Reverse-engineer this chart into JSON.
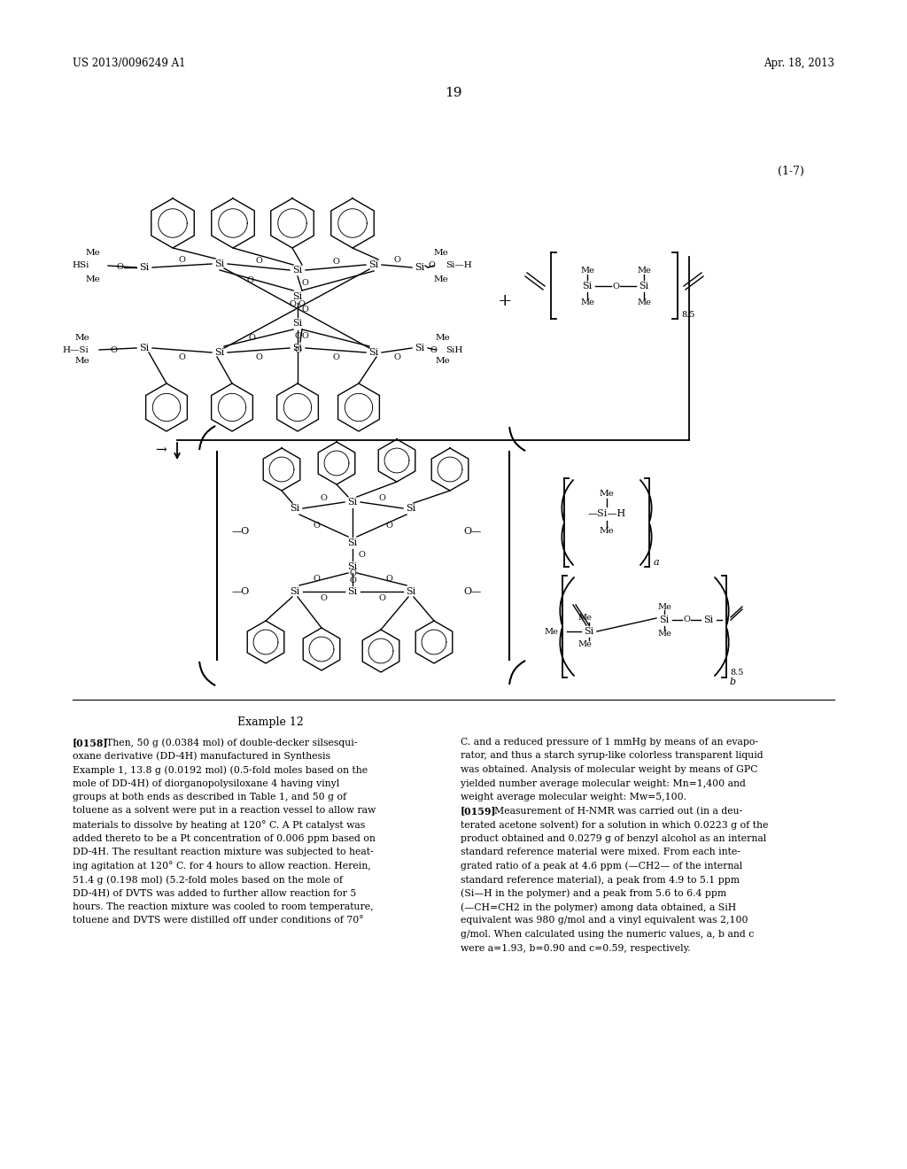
{
  "background_color": "#ffffff",
  "page_header_left": "US 2013/0096249 A1",
  "page_header_right": "Apr. 18, 2013",
  "page_number": "19",
  "formula_label": "(1-7)",
  "text_col1_title": "Example 12",
  "text_col1_para1_tag": "[0158]",
  "text_col1_para1": "  Then, 50 g (0.0384 mol) of double-decker silsesqui-\noxane derivative (DD-4H) manufactured in Synthesis\nExample 1, 13.8 g (0.0192 mol) (0.5-fold moles based on the\nmole of DD-4H) of diorganopolysiloxane 4 having vinyl\ngroups at both ends as described in Table 1, and 50 g of\ntoluene as a solvent were put in a reaction vessel to allow raw\nmaterials to dissolve by heating at 120° C. A Pt catalyst was\nadded thereto to be a Pt concentration of 0.006 ppm based on\nDD-4H. The resultant reaction mixture was subjected to heat-\ning agitation at 120° C. for 4 hours to allow reaction. Herein,\n51.4 g (0.198 mol) (5.2-fold moles based on the mole of\nDD-4H) of DVTS was added to further allow reaction for 5\nhours. The reaction mixture was cooled to room temperature,\ntoluene and DVTS were distilled off under conditions of 70°",
  "text_col2_para1": "C. and a reduced pressure of 1 mmHg by means of an evapo-\nrator, and thus a starch syrup-like colorless transparent liquid\nwas obtained. Analysis of molecular weight by means of GPC\nyielded number average molecular weight: Mn=1,400 and\nweight average molecular weight: Mw=5,100.",
  "text_col2_para2_tag": "[0159]",
  "text_col2_para2": "  Measurement of H-NMR was carried out (in a deu-\nterated acetone solvent) for a solution in which 0.0223 g of the\nproduct obtained and 0.0279 g of benzyl alcohol as an internal\nstandard reference material were mixed. From each inte-\ngrated ratio of a peak at 4.6 ppm (—CH2— of the internal\nstandard reference material), a peak from 4.9 to 5.1 ppm\n(Si—H in the polymer) and a peak from 5.6 to 6.4 ppm\n(—CH=CH2 in the polymer) among data obtained, a SiH\nequivalent was 980 g/mol and a vinyl equivalent was 2,100\ng/mol. When calculated using the numeric values, a, b and c\nwere a=1.93, b=0.90 and c=0.59, respectively."
}
